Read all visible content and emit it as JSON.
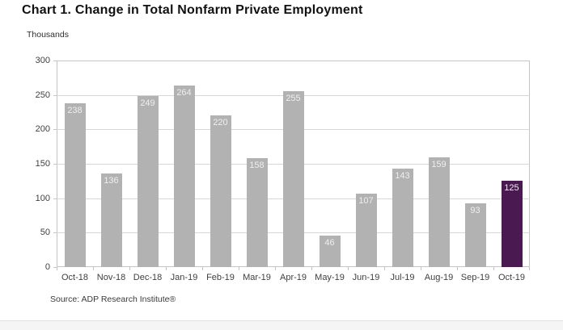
{
  "page": {
    "title": "Chart 1. Change in Total Nonfarm Private Employment",
    "units_label": "Thousands",
    "source": "Source: ADP Research Institute®"
  },
  "chart_data": {
    "type": "bar",
    "title": "Chart 1. Change in Total Nonfarm Private Employment",
    "ylabel": "Thousands",
    "xlabel": "",
    "categories": [
      "Oct-18",
      "Nov-18",
      "Dec-18",
      "Jan-19",
      "Feb-19",
      "Mar-19",
      "Apr-19",
      "May-19",
      "Jun-19",
      "Jul-19",
      "Aug-19",
      "Sep-19",
      "Oct-19"
    ],
    "values": [
      238,
      136,
      249,
      264,
      220,
      158,
      255,
      46,
      107,
      143,
      159,
      93,
      125
    ],
    "value_labels_shown": true,
    "highlight_index": 12,
    "bar_color": "#b2b2b2",
    "highlight_color": "#4a1951",
    "value_label_color": "#efefef",
    "grid": true,
    "legend": "none",
    "ylim": [
      0,
      300
    ],
    "yticks": [
      0,
      50,
      100,
      150,
      200,
      250,
      300
    ],
    "source": "Source: ADP Research Institute®"
  }
}
